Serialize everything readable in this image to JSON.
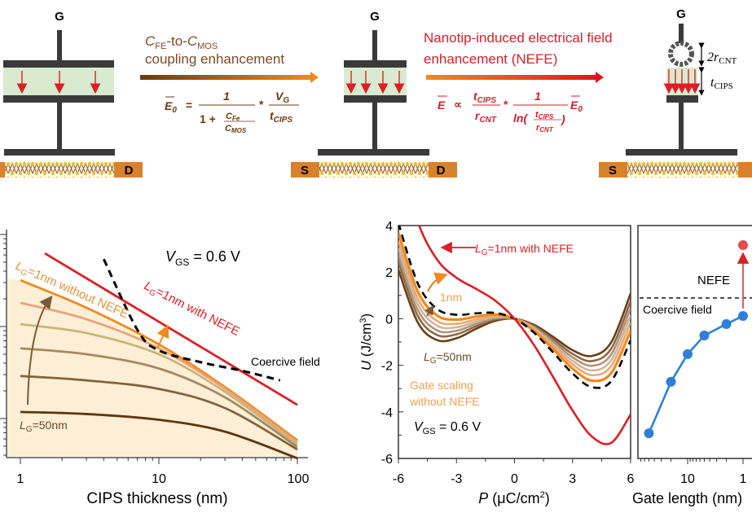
{
  "schematic": {
    "gate_label": "G",
    "source_label": "S",
    "drain_label": "D",
    "colors": {
      "plate": "#3a3a3a",
      "cips": "#d8ead0",
      "contact": "#d9822b",
      "field_arrow": "#e03a3a",
      "step1_text": "#7a4a26",
      "step2_text": "#d81e2a"
    },
    "step1": {
      "c": "C",
      "fe": "FE",
      "to": "-to-",
      "mos": "MOS",
      "line2": "coupling enhancement",
      "formula": {
        "lhs": "E",
        "lhs_sub": "0",
        "eq": "=",
        "num1": "1",
        "den1a": "1 + ",
        "cfe": "C",
        "cfe_sub": "Fe",
        "cmos": "C",
        "cmos_sub": "MOS",
        "times": "*",
        "vg": "V",
        "vg_sub": "G",
        "t": "t",
        "t_sub": "CIPS"
      }
    },
    "step2": {
      "line1": "Nanotip-induced electrical field",
      "line2": "enhancement (NEFE)",
      "formula": {
        "lhs": "E",
        "prop": "∝",
        "t": "t",
        "t_sub": "CIPS",
        "r": "r",
        "r_sub": "CNT",
        "times": "*",
        "one": "1",
        "ln": "ln(",
        "close": ")",
        "e0": "E",
        "e0_sub": "0"
      }
    },
    "dims": {
      "cnt": "2r",
      "cnt_sub": "CNT",
      "cips": "t",
      "cips_sub": "CIPS"
    }
  },
  "chart_data": [
    {
      "type": "line",
      "xlabel": "CIPS thickness (nm)",
      "x_scale": "log",
      "y_scale": "log",
      "xlim": [
        1,
        100
      ],
      "x_ticks": [
        "1",
        "10",
        "100"
      ],
      "y_ticks_labeled": false,
      "shaded_region": "below LG=1nm curve",
      "annotation_vgs": {
        "v": "V",
        "sub": "GS",
        "rest": " = 0.6 V"
      },
      "label_1nm_without": {
        "l": "L",
        "sub": "G",
        "rest": "=1nm without NEFE"
      },
      "label_1nm_with": {
        "l": "L",
        "sub": "G",
        "rest": "=1nm with NEFE"
      },
      "label_50nm": {
        "l": "L",
        "sub": "G",
        "rest": "=50nm"
      },
      "label_coercive": "Coercive field",
      "x": [
        1,
        3,
        10,
        30,
        100
      ],
      "series": [
        {
          "id": "with_nefe",
          "color": "#dc1f26",
          "x": [
            1.5,
            100
          ],
          "values": [
            62.5,
            1.41
          ]
        },
        {
          "id": "lg1_without",
          "color": "#f08a1e",
          "values": [
            31.9,
            16,
            6.4,
            2.2,
            0.58
          ]
        },
        {
          "id": "lg2",
          "color": "#eba27a",
          "values": [
            18.1,
            12,
            5.8,
            2.1,
            0.55
          ]
        },
        {
          "id": "lg3",
          "color": "#c9b57a",
          "values": [
            10.6,
            8.5,
            5.0,
            1.95,
            0.52
          ]
        },
        {
          "id": "lg4",
          "color": "#a88763",
          "values": [
            5.8,
            5.0,
            3.5,
            1.7,
            0.49
          ]
        },
        {
          "id": "lg5",
          "color": "#86613f",
          "values": [
            2.9,
            2.6,
            2.1,
            1.3,
            0.46
          ]
        },
        {
          "id": "lg50",
          "color": "#5e3512",
          "values": [
            1.18,
            1.12,
            0.97,
            0.72,
            0.37
          ]
        },
        {
          "id": "coercive",
          "color": "#000000",
          "dashed": true,
          "x": [
            4,
            7,
            10,
            20,
            40,
            75
          ],
          "values": [
            54,
            9.2,
            5.5,
            4.1,
            3.3,
            2.6
          ]
        }
      ]
    },
    {
      "type": "line",
      "xlabel_var": "P",
      "xlabel_unit": " (μC/cm",
      "xlabel_sup": "2",
      "xlabel_end": ")",
      "ylabel_var": "U",
      "ylabel_unit": " (J/cm",
      "ylabel_sup": "3",
      "ylabel_end": ")",
      "xlim": [
        -6,
        6
      ],
      "ylim": [
        -6,
        4
      ],
      "x_ticks": [
        "-6",
        "-3",
        "0",
        "3",
        "6"
      ],
      "y_ticks": [
        "4",
        "2",
        "0",
        "-2",
        "-4",
        "-6"
      ],
      "label_with_nefe": {
        "l": "L",
        "sub": "G",
        "rest": "=1nm with NEFE"
      },
      "label_1nm": "1nm",
      "label_50nm": {
        "l": "L",
        "sub": "G",
        "rest": "=50nm"
      },
      "label_gate_scaling": [
        "Gate scaling",
        "without NEFE"
      ],
      "annotation_vgs": {
        "v": "V",
        "sub": "GS",
        "rest": " = 0.6 V"
      },
      "x": [
        -6,
        -5,
        -4,
        -3,
        -2,
        -1,
        0,
        1,
        2,
        3,
        4,
        5,
        6
      ],
      "series": [
        {
          "id": "lg50",
          "color": "#6b3f17",
          "values": [
            2.1,
            -0.16,
            -0.92,
            -0.84,
            -0.44,
            -0.09,
            0,
            -0.26,
            -0.78,
            -1.35,
            -1.6,
            -1.01,
            1.08
          ]
        },
        {
          "id": "lg2",
          "color": "#8e6a48",
          "values": [
            2.43,
            0.12,
            -0.7,
            -0.67,
            -0.33,
            -0.03,
            0,
            -0.31,
            -0.89,
            -1.51,
            -1.82,
            -1.28,
            0.75
          ]
        },
        {
          "id": "lg3",
          "color": "#b09478",
          "values": [
            2.73,
            0.37,
            -0.5,
            -0.52,
            -0.23,
            0.02,
            0,
            -0.36,
            -0.99,
            -1.66,
            -2.02,
            -1.53,
            0.45
          ]
        },
        {
          "id": "lg4",
          "color": "#cdb69c",
          "values": [
            3.03,
            0.62,
            -0.3,
            -0.37,
            -0.13,
            0.07,
            0,
            -0.41,
            -1.09,
            -1.81,
            -2.22,
            -1.78,
            0.15
          ]
        },
        {
          "id": "lg5",
          "color": "#eaa872",
          "values": [
            3.33,
            0.87,
            -0.1,
            -0.22,
            -0.03,
            0.12,
            0,
            -0.46,
            -1.19,
            -1.96,
            -2.42,
            -2.03,
            -0.15
          ]
        },
        {
          "id": "lg1_without",
          "color": "#f08a1e",
          "values": [
            3.69,
            1.17,
            0.14,
            -0.04,
            0.09,
            0.18,
            0,
            -0.52,
            -1.31,
            -2.14,
            -2.66,
            -2.33,
            -0.51
          ]
        },
        {
          "id": "coercive",
          "color": "#000000",
          "dashed": true,
          "values": [
            4.11,
            1.52,
            0.42,
            0.17,
            0.23,
            0.25,
            0,
            -0.59,
            -1.45,
            -2.35,
            -2.94,
            -2.68,
            -0.93
          ]
        },
        {
          "id": "with_nefe",
          "color": "#dc1f26",
          "values": [
            7.29,
            4.17,
            2.54,
            1.76,
            1.29,
            0.78,
            0,
            -1.12,
            -2.51,
            -3.94,
            -5.06,
            -5.33,
            -4.11
          ]
        }
      ]
    },
    {
      "type": "line",
      "xlabel": "Gate length (nm)",
      "x_scale": "log",
      "x_reversed": true,
      "x_ticks": [
        "10",
        "1"
      ],
      "y_ticks_labeled": false,
      "label_nefe": "NEFE",
      "label_coercive": "Coercive field",
      "x": [
        50,
        20,
        10,
        5,
        2,
        1
      ],
      "series": [
        {
          "id": "without_nefe",
          "color": "#2f7fd8",
          "values": [
            1.08,
            3.29,
            4.48,
            5.28,
            5.77,
            6.12
          ]
        },
        {
          "id": "with_nefe",
          "color": "#e84a4a",
          "x": [
            1
          ],
          "values": [
            9.16
          ]
        }
      ],
      "coercive_level": 6.89
    }
  ]
}
